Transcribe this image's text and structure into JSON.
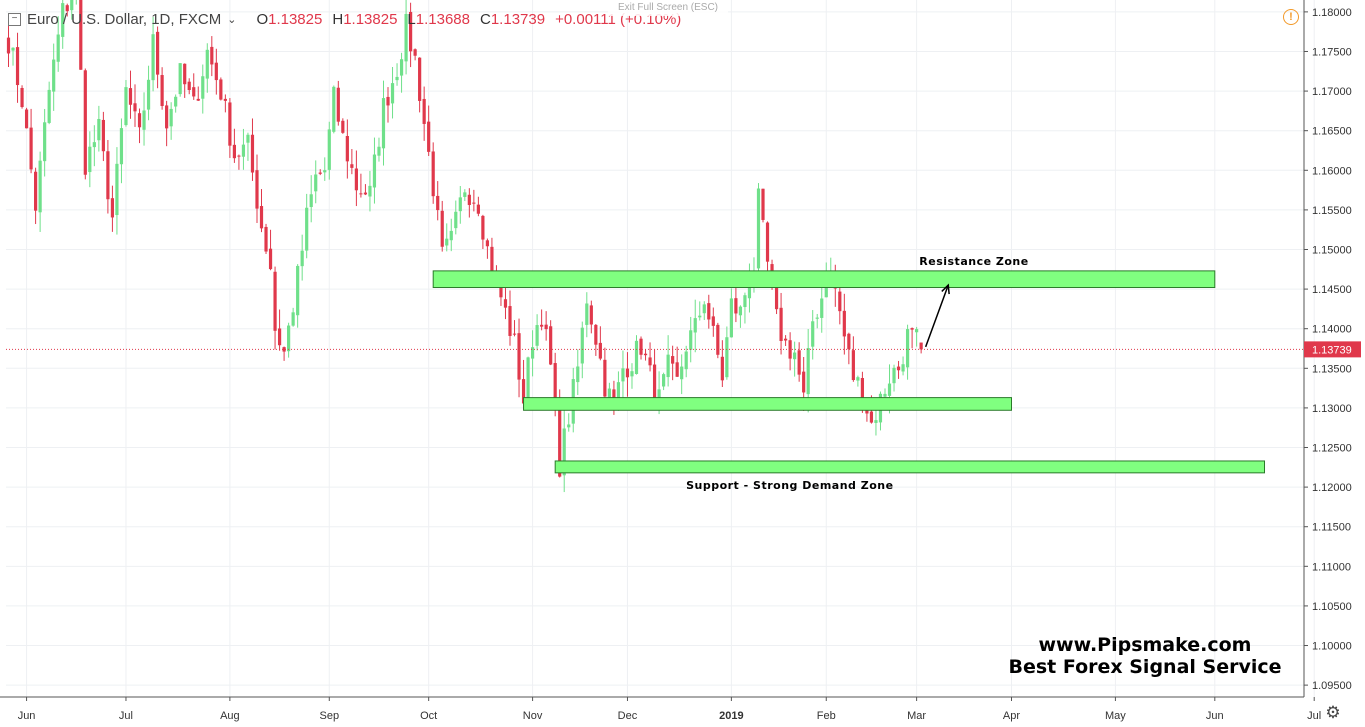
{
  "header": {
    "collapse_icon": "minus-box-icon",
    "symbol": "Euro / U.S. Dollar, 1D, FXCM",
    "dropdown_icon": "chevron-down-icon",
    "open_label": "O",
    "open_value": "1.13825",
    "high_label": "H",
    "high_value": "1.13825",
    "low_label": "L",
    "low_value": "1.13688",
    "close_label": "C",
    "close_value": "1.13739",
    "change": "+0.00111 (+0.10%)"
  },
  "exit_fullscreen": "Exit Full Screen (ESC)",
  "alert_icon": "exclamation-circle-icon",
  "alert_glyph": "!",
  "settings_icon": "gear-icon",
  "settings_glyph": "⚙",
  "watermark": {
    "line1": "www.Pipsmake.com",
    "line2": "Best Forex Signal Service"
  },
  "colors": {
    "up": "#6fe08a",
    "down": "#e0384b",
    "zone_fill": "#80ff80",
    "zone_stroke": "#2a7a2a",
    "last_price_bg": "#e0384b",
    "grid": "#eef0f3"
  },
  "chart_data": {
    "type": "candlestick",
    "title": "Euro / U.S. Dollar, 1D, FXCM",
    "y_ticks": [
      "1.18000",
      "1.17500",
      "1.17000",
      "1.16500",
      "1.16000",
      "1.15500",
      "1.15000",
      "1.14500",
      "1.14000",
      "1.13500",
      "1.13000",
      "1.12500",
      "1.12000",
      "1.11500",
      "1.11000",
      "1.10500",
      "1.10000",
      "1.09500"
    ],
    "ylim": [
      1.0935,
      1.1815
    ],
    "x_ticks": [
      "Jun",
      "Jul",
      "Aug",
      "Sep",
      "Oct",
      "Nov",
      "Dec",
      "2019",
      "Feb",
      "Mar",
      "Apr",
      "May",
      "Jun",
      "Jul"
    ],
    "x_tick_bars": [
      4,
      26,
      49,
      71,
      93,
      116,
      137,
      160,
      181,
      201,
      222,
      245,
      267,
      289
    ],
    "last_price": 1.13739,
    "last_price_label": "1.13739",
    "zones": [
      {
        "name": "Resistance Zone",
        "from_bar": 94,
        "to_bar": 267,
        "low": 1.1452,
        "high": 1.1473
      },
      {
        "name": "",
        "from_bar": 114,
        "to_bar": 222,
        "low": 1.1297,
        "high": 1.1313
      },
      {
        "name": "Support - Strong Demand Zone",
        "from_bar": 121,
        "to_bar": 278,
        "low": 1.1218,
        "high": 1.1233
      }
    ],
    "arrow": {
      "from_bar": 203,
      "from_price": 1.1377,
      "to_bar": 208,
      "to_price": 1.1455
    },
    "anchors": [
      [
        0,
        1.1765
      ],
      [
        3,
        1.169
      ],
      [
        6,
        1.1555
      ],
      [
        9,
        1.17
      ],
      [
        12,
        1.18
      ],
      [
        15,
        1.183
      ],
      [
        17,
        1.161
      ],
      [
        20,
        1.165
      ],
      [
        23,
        1.154
      ],
      [
        26,
        1.17
      ],
      [
        29,
        1.164
      ],
      [
        32,
        1.176
      ],
      [
        35,
        1.166
      ],
      [
        38,
        1.172
      ],
      [
        41,
        1.168
      ],
      [
        44,
        1.175
      ],
      [
        47,
        1.17
      ],
      [
        50,
        1.162
      ],
      [
        53,
        1.163
      ],
      [
        56,
        1.153
      ],
      [
        58,
        1.148
      ],
      [
        59,
        1.14
      ],
      [
        61,
        1.137
      ],
      [
        63,
        1.143
      ],
      [
        65,
        1.15
      ],
      [
        66,
        1.154
      ],
      [
        68,
        1.159
      ],
      [
        70,
        1.16
      ],
      [
        72,
        1.169
      ],
      [
        74,
        1.164
      ],
      [
        77,
        1.158
      ],
      [
        80,
        1.157
      ],
      [
        83,
        1.168
      ],
      [
        86,
        1.173
      ],
      [
        88,
        1.178
      ],
      [
        90,
        1.174
      ],
      [
        92,
        1.166
      ],
      [
        94,
        1.158
      ],
      [
        96,
        1.149
      ],
      [
        98,
        1.151
      ],
      [
        101,
        1.158
      ],
      [
        104,
        1.156
      ],
      [
        106,
        1.15
      ],
      [
        108,
        1.146
      ],
      [
        110,
        1.142
      ],
      [
        112,
        1.138
      ],
      [
        114,
        1.131
      ],
      [
        116,
        1.139
      ],
      [
        118,
        1.142
      ],
      [
        120,
        1.135
      ],
      [
        122,
        1.123
      ],
      [
        124,
        1.129
      ],
      [
        126,
        1.135
      ],
      [
        128,
        1.144
      ],
      [
        130,
        1.139
      ],
      [
        132,
        1.133
      ],
      [
        134,
        1.13
      ],
      [
        136,
        1.135
      ],
      [
        138,
        1.136
      ],
      [
        140,
        1.138
      ],
      [
        142,
        1.134
      ],
      [
        144,
        1.131
      ],
      [
        146,
        1.135
      ],
      [
        148,
        1.133
      ],
      [
        150,
        1.138
      ],
      [
        152,
        1.14
      ],
      [
        154,
        1.144
      ],
      [
        156,
        1.139
      ],
      [
        158,
        1.134
      ],
      [
        160,
        1.143
      ],
      [
        162,
        1.142
      ],
      [
        164,
        1.147
      ],
      [
        165,
        1.148
      ],
      [
        166,
        1.156
      ],
      [
        168,
        1.148
      ],
      [
        170,
        1.141
      ],
      [
        172,
        1.138
      ],
      [
        174,
        1.137
      ],
      [
        176,
        1.131
      ],
      [
        178,
        1.141
      ],
      [
        180,
        1.144
      ],
      [
        181,
        1.148
      ],
      [
        183,
        1.145
      ],
      [
        185,
        1.139
      ],
      [
        187,
        1.134
      ],
      [
        189,
        1.132
      ],
      [
        191,
        1.128
      ],
      [
        193,
        1.131
      ],
      [
        195,
        1.134
      ],
      [
        197,
        1.135
      ],
      [
        199,
        1.139
      ],
      [
        201,
        1.1385
      ],
      [
        202,
        1.1373
      ]
    ]
  }
}
